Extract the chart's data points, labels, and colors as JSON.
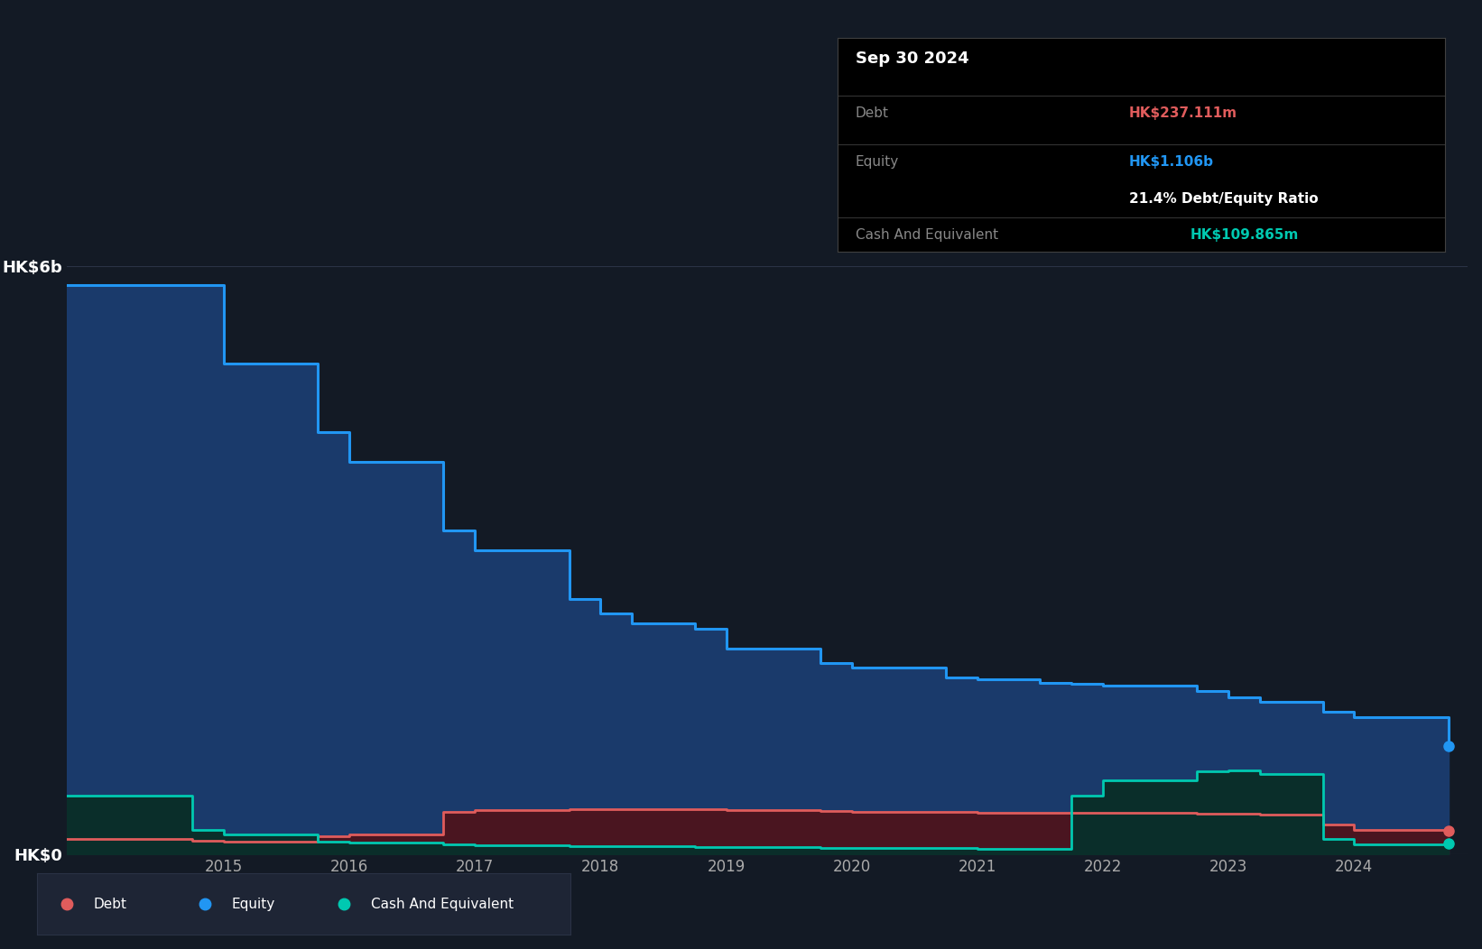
{
  "bg_color": "#131a25",
  "plot_bg_color": "#131a25",
  "equity_color": "#2196f3",
  "equity_fill": "#1a3a6b",
  "debt_color": "#e05c5c",
  "debt_fill": "#4a1520",
  "cash_color": "#00c9b1",
  "cash_fill": "#0a2e2a",
  "grid_color": "#2a3245",
  "legend_bg": "#1e2535",
  "dates": [
    2013.75,
    2014.75,
    2015.0,
    2015.75,
    2016.0,
    2016.75,
    2017.0,
    2017.75,
    2018.0,
    2018.25,
    2018.75,
    2019.0,
    2019.75,
    2020.0,
    2020.75,
    2021.0,
    2021.5,
    2021.75,
    2022.0,
    2022.75,
    2023.0,
    2023.25,
    2023.75,
    2024.0,
    2024.75
  ],
  "equity": [
    5800000000,
    5800000000,
    5000000000,
    4300000000,
    4000000000,
    3300000000,
    3100000000,
    2600000000,
    2450000000,
    2350000000,
    2300000000,
    2100000000,
    1950000000,
    1900000000,
    1800000000,
    1780000000,
    1750000000,
    1740000000,
    1720000000,
    1660000000,
    1600000000,
    1550000000,
    1450000000,
    1400000000,
    1106000000
  ],
  "debt": [
    150000000,
    140000000,
    130000000,
    180000000,
    200000000,
    430000000,
    450000000,
    460000000,
    460000000,
    460000000,
    455000000,
    450000000,
    440000000,
    435000000,
    428000000,
    425000000,
    420000000,
    420000000,
    418000000,
    413000000,
    410000000,
    400000000,
    300000000,
    250000000,
    237111000
  ],
  "cash": [
    600000000,
    250000000,
    200000000,
    130000000,
    120000000,
    95000000,
    90000000,
    82000000,
    80000000,
    78000000,
    74000000,
    72000000,
    66000000,
    64000000,
    58000000,
    55000000,
    52000000,
    600000000,
    750000000,
    840000000,
    850000000,
    820000000,
    150000000,
    100000000,
    109865000
  ],
  "ylim": [
    0,
    6000000000
  ],
  "ytick_labels": [
    "HK$0",
    "HK$6b"
  ],
  "xtick_years": [
    2015,
    2016,
    2017,
    2018,
    2019,
    2020,
    2021,
    2022,
    2023,
    2024
  ],
  "tooltip_date": "Sep 30 2024",
  "tooltip_debt_label": "Debt",
  "tooltip_debt_val": "HK$237.111m",
  "tooltip_equity_label": "Equity",
  "tooltip_equity_val": "HK$1.106b",
  "tooltip_ratio": "21.4% Debt/Equity Ratio",
  "tooltip_cash_label": "Cash And Equivalent",
  "tooltip_cash_val": "HK$109.865m",
  "legend_items": [
    {
      "label": "Debt",
      "color": "#e05c5c"
    },
    {
      "label": "Equity",
      "color": "#2196f3"
    },
    {
      "label": "Cash And Equivalent",
      "color": "#00c9b1"
    }
  ]
}
